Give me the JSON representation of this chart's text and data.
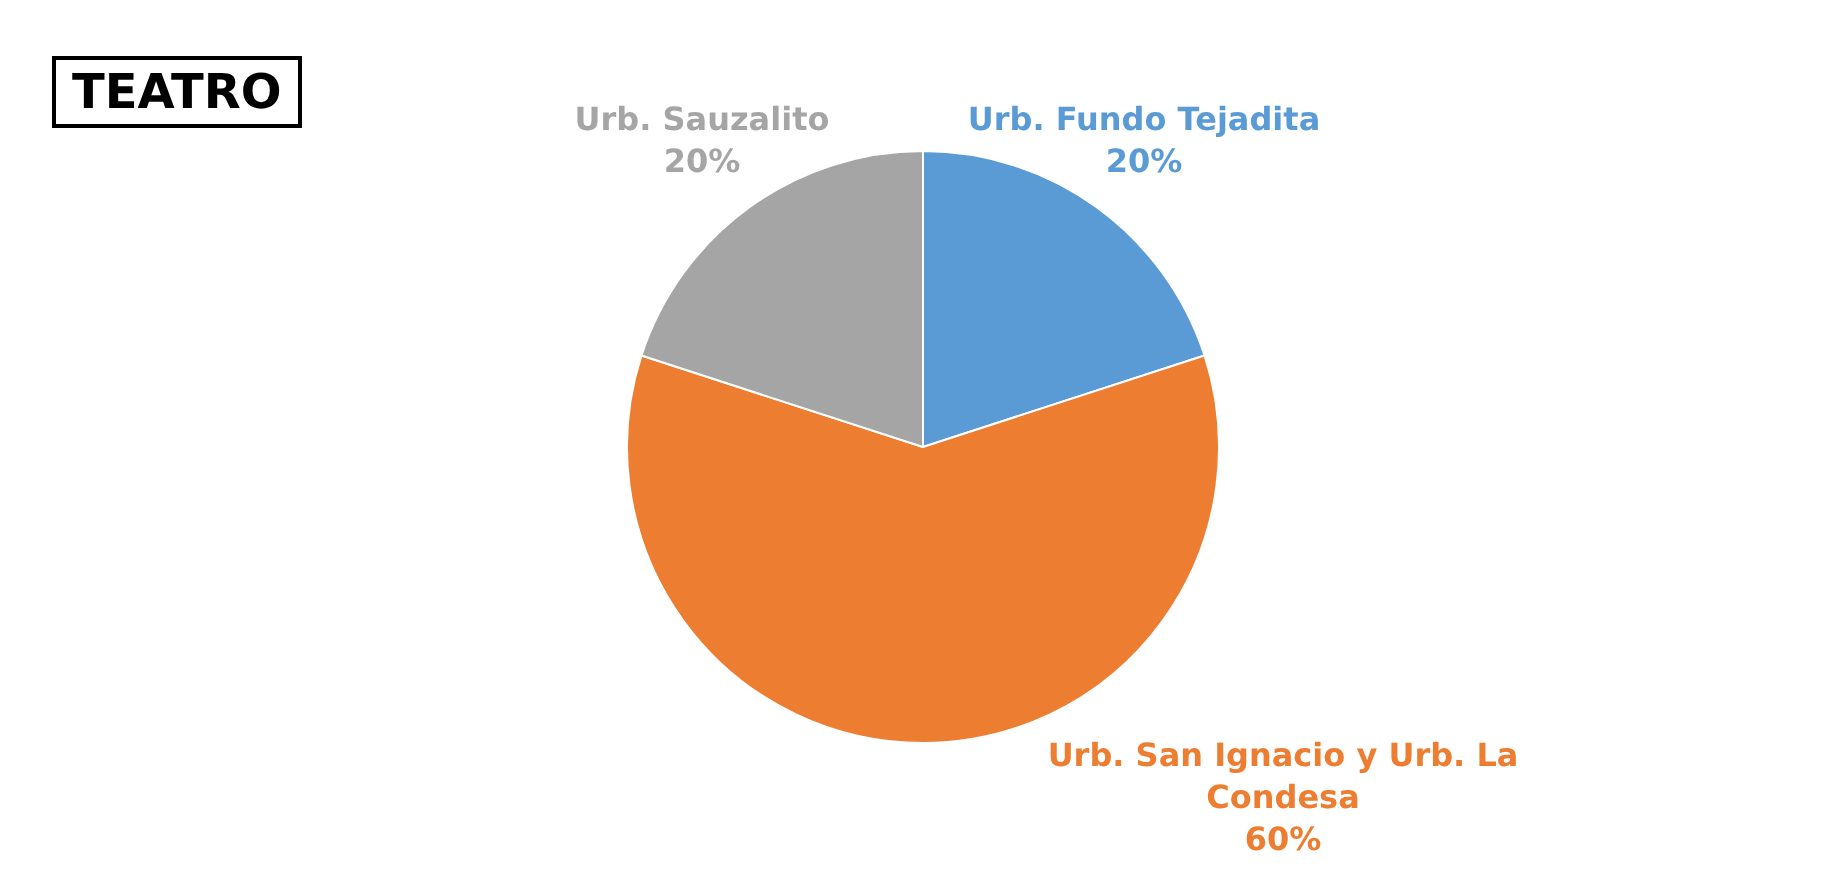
{
  "chart_data": {
    "type": "pie",
    "title": "TEATRO",
    "categories": [
      "Urb. Fundo Tejadita",
      "Urb. San Ignacio y Urb. La Condesa",
      "Urb. Sauzalito"
    ],
    "values": [
      20,
      60,
      20
    ],
    "colors": [
      "#5b9bd5",
      "#ed7d31",
      "#a5a5a5"
    ],
    "value_labels": [
      "20%",
      "60%",
      "20%"
    ],
    "legend": false
  }
}
